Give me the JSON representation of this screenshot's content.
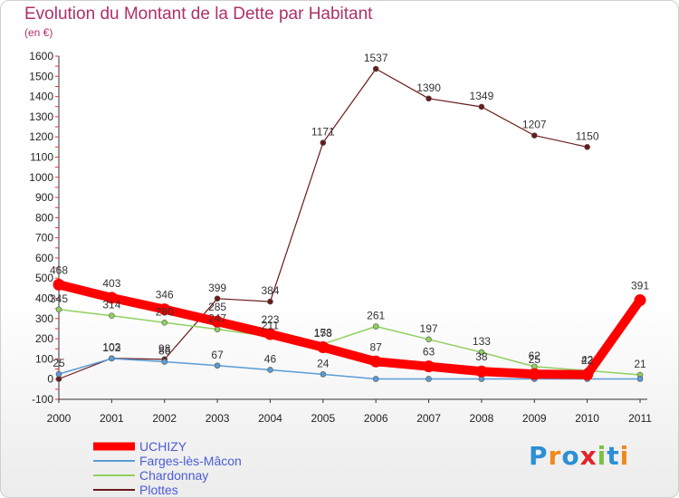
{
  "title": "Evolution du Montant de la Dette par Habitant",
  "subtitle": "(en €)",
  "logo": {
    "text": "Proxiti",
    "colors": [
      "#2d8fd5",
      "#f08a1e",
      "#2d8fd5",
      "#e3242b",
      "#7ac142",
      "#2d8fd5",
      "#f08a1e"
    ]
  },
  "chart_data": {
    "type": "line",
    "title": "Evolution du Montant de la Dette par Habitant",
    "ylabel": "(en €)",
    "x": [
      2000,
      2001,
      2002,
      2003,
      2004,
      2005,
      2006,
      2007,
      2008,
      2009,
      2010,
      2011
    ],
    "ylim": [
      -100,
      1600
    ],
    "yticks": [
      -100,
      0,
      100,
      200,
      300,
      400,
      500,
      600,
      700,
      800,
      900,
      1000,
      1100,
      1200,
      1300,
      1400,
      1500,
      1600
    ],
    "grid": false,
    "legend": "bottom-left",
    "series": [
      {
        "name": "UCHIZY",
        "color": "#ff0000",
        "width": 10,
        "labels_above": true,
        "values": [
          468,
          403,
          346,
          285,
          223,
          158,
          87,
          63,
          38,
          25,
          22,
          391
        ]
      },
      {
        "name": "Farges-lès-Mâcon",
        "color": "#5b9bd5",
        "width": 1.5,
        "labels_above": true,
        "values": [
          25,
          102,
          86,
          67,
          46,
          24,
          1,
          1,
          1,
          1,
          1,
          1
        ],
        "hidden_labels": [
          6,
          7,
          8,
          9,
          10,
          11
        ]
      },
      {
        "name": "Chardonnay",
        "color": "#90d060",
        "width": 1.5,
        "labels_above": false,
        "values": [
          345,
          314,
          280,
          247,
          211,
          173,
          261,
          197,
          133,
          62,
          42,
          21
        ]
      },
      {
        "name": "Plottes",
        "color": "#6b1a1a",
        "width": 1.2,
        "labels_above": false,
        "values": [
          1,
          103,
          98,
          399,
          384,
          1171,
          1537,
          1390,
          1349,
          1207,
          1150,
          null
        ],
        "hidden_labels": [
          0
        ]
      }
    ]
  }
}
